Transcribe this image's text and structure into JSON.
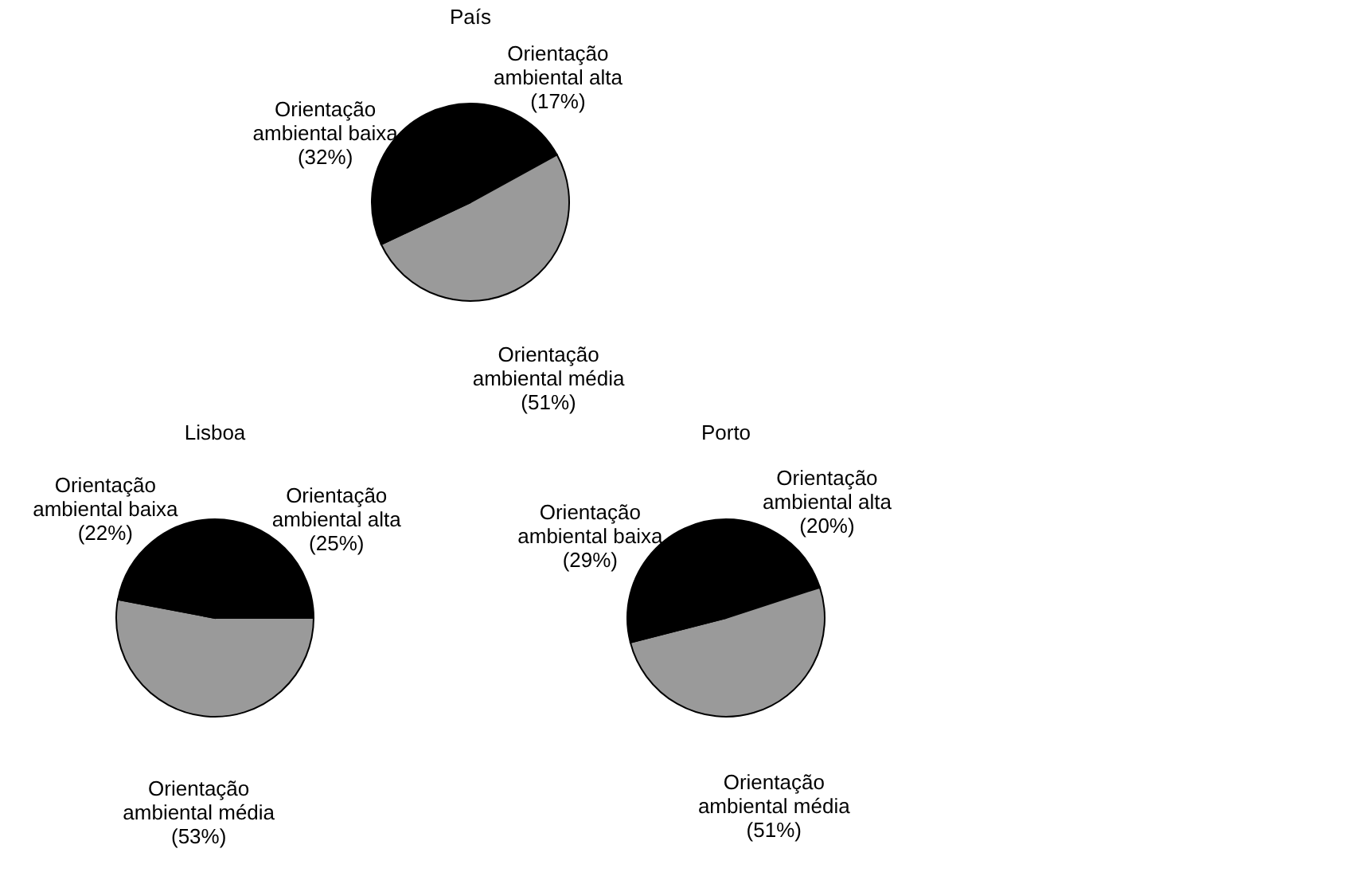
{
  "chart_data": [
    {
      "type": "pie",
      "title": "País",
      "categories": [
        "Orientação ambiental alta",
        "Orientação ambiental média",
        "Orientação ambiental baixa"
      ],
      "values": [
        17,
        51,
        32
      ],
      "value_labels": [
        "(17%)",
        "(51%)",
        "(32%)"
      ],
      "colors": [
        "#000000",
        "#9a9a9a",
        "#000000"
      ],
      "legend": false
    },
    {
      "type": "pie",
      "title": "Lisboa",
      "categories": [
        "Orientação ambiental alta",
        "Orientação ambiental média",
        "Orientação ambiental baixa"
      ],
      "values": [
        25,
        53,
        22
      ],
      "value_labels": [
        "(25%)",
        "(53%)",
        "(22%)"
      ],
      "colors": [
        "#000000",
        "#9a9a9a",
        "#000000"
      ],
      "legend": false
    },
    {
      "type": "pie",
      "title": "Porto",
      "categories": [
        "Orientação ambiental alta",
        "Orientação ambiental média",
        "Orientação ambiental baixa"
      ],
      "values": [
        20,
        51,
        29
      ],
      "value_labels": [
        "(20%)",
        "(51%)",
        "(29%)"
      ],
      "colors": [
        "#000000",
        "#9a9a9a",
        "#000000"
      ],
      "legend": false
    }
  ]
}
